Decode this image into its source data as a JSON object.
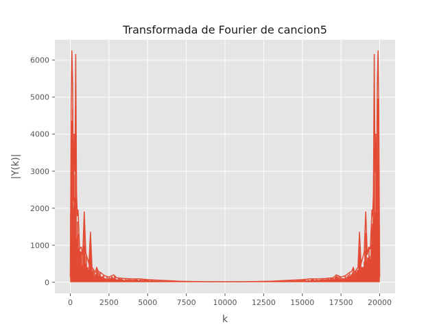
{
  "chart_data": {
    "type": "line",
    "title": "Transformada de Fourier de cancion5",
    "xlabel": "k",
    "ylabel": "|Y(k)|",
    "xlim": [
      -1000,
      21000
    ],
    "ylim": [
      -300,
      6550
    ],
    "x_ticks": [
      0,
      2500,
      5000,
      7500,
      10000,
      12500,
      15000,
      17500,
      20000
    ],
    "x_tick_labels": [
      "0",
      "2500",
      "5000",
      "7500",
      "10000",
      "12500",
      "15000",
      "17500",
      "20000"
    ],
    "y_ticks": [
      0,
      1000,
      2000,
      3000,
      4000,
      5000,
      6000
    ],
    "y_tick_labels": [
      "0",
      "1000",
      "2000",
      "3000",
      "4000",
      "5000",
      "6000"
    ],
    "grid": true,
    "style": "ggplot",
    "series_color": "#E24A33",
    "series": [
      {
        "envelope": [
          [
            0,
            150
          ],
          [
            50,
            4750
          ],
          [
            100,
            6250
          ],
          [
            150,
            5350
          ],
          [
            200,
            2200
          ],
          [
            250,
            4000
          ],
          [
            300,
            3000
          ],
          [
            350,
            6150
          ],
          [
            400,
            2400
          ],
          [
            450,
            1800
          ],
          [
            500,
            1950
          ],
          [
            600,
            900
          ],
          [
            700,
            950
          ],
          [
            800,
            750
          ],
          [
            900,
            1900
          ],
          [
            1000,
            800
          ],
          [
            1100,
            650
          ],
          [
            1200,
            500
          ],
          [
            1300,
            1350
          ],
          [
            1400,
            400
          ],
          [
            1500,
            350
          ],
          [
            1600,
            250
          ],
          [
            1700,
            400
          ],
          [
            1800,
            300
          ],
          [
            2000,
            250
          ],
          [
            2200,
            180
          ],
          [
            2500,
            140
          ],
          [
            2800,
            200
          ],
          [
            3000,
            120
          ],
          [
            3500,
            100
          ],
          [
            4000,
            90
          ],
          [
            4500,
            90
          ],
          [
            5000,
            70
          ],
          [
            6000,
            50
          ],
          [
            7000,
            30
          ],
          [
            8000,
            20
          ],
          [
            9000,
            15
          ],
          [
            10000,
            15
          ],
          [
            11000,
            15
          ],
          [
            12000,
            20
          ],
          [
            13000,
            30
          ],
          [
            14000,
            50
          ],
          [
            15000,
            70
          ],
          [
            15500,
            90
          ],
          [
            16000,
            90
          ],
          [
            16500,
            100
          ],
          [
            17000,
            120
          ],
          [
            17200,
            200
          ],
          [
            17500,
            140
          ],
          [
            17800,
            180
          ],
          [
            18000,
            250
          ],
          [
            18200,
            300
          ],
          [
            18300,
            400
          ],
          [
            18400,
            250
          ],
          [
            18500,
            350
          ],
          [
            18600,
            400
          ],
          [
            18700,
            1350
          ],
          [
            18800,
            500
          ],
          [
            18900,
            650
          ],
          [
            19000,
            800
          ],
          [
            19100,
            1900
          ],
          [
            19200,
            750
          ],
          [
            19300,
            950
          ],
          [
            19400,
            900
          ],
          [
            19500,
            1950
          ],
          [
            19550,
            1800
          ],
          [
            19600,
            2400
          ],
          [
            19650,
            6150
          ],
          [
            19700,
            3000
          ],
          [
            19750,
            4000
          ],
          [
            19800,
            2200
          ],
          [
            19850,
            5350
          ],
          [
            19900,
            6250
          ],
          [
            19950,
            4750
          ],
          [
            20000,
            150
          ]
        ]
      }
    ]
  }
}
